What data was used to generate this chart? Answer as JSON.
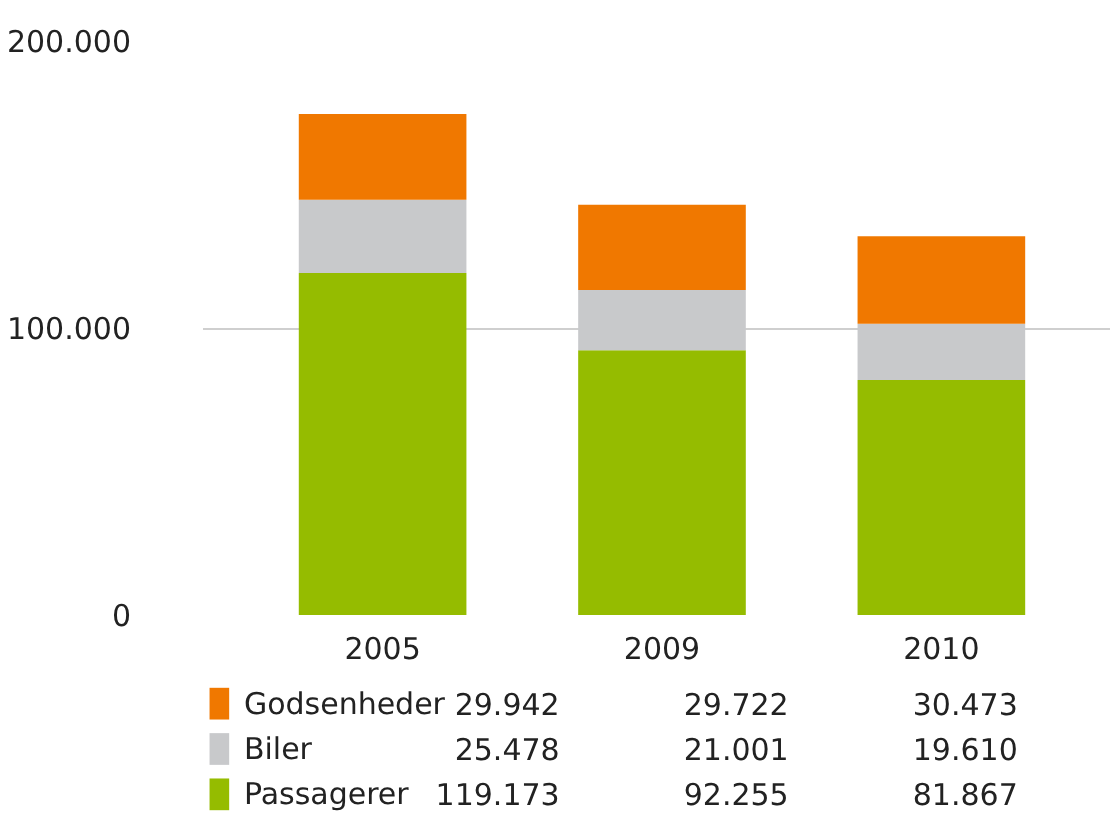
{
  "chart_data": {
    "type": "bar",
    "stacked": true,
    "categories": [
      "2005",
      "2009",
      "2010"
    ],
    "series": [
      {
        "name": "Passagerer",
        "color": "#95bc00",
        "values": [
          119173,
          92255,
          81867
        ],
        "value_labels": [
          "119.173",
          "92.255",
          "81.867"
        ]
      },
      {
        "name": "Biler",
        "color": "#c8c9cb",
        "values": [
          25478,
          21001,
          19610
        ],
        "value_labels": [
          "25.478",
          "21.001",
          "19.610"
        ]
      },
      {
        "name": "Godsenheder",
        "color": "#f07800",
        "values": [
          29942,
          29722,
          30473
        ],
        "value_labels": [
          "29.942",
          "29.722",
          "30.473"
        ]
      }
    ],
    "ylim": [
      0,
      200000
    ],
    "yticks": [
      {
        "value": 0,
        "label": "0"
      },
      {
        "value": 100000,
        "label": "100.000"
      },
      {
        "value": 200000,
        "label": "200.000"
      }
    ],
    "grid": "y",
    "legend": "bottom"
  }
}
